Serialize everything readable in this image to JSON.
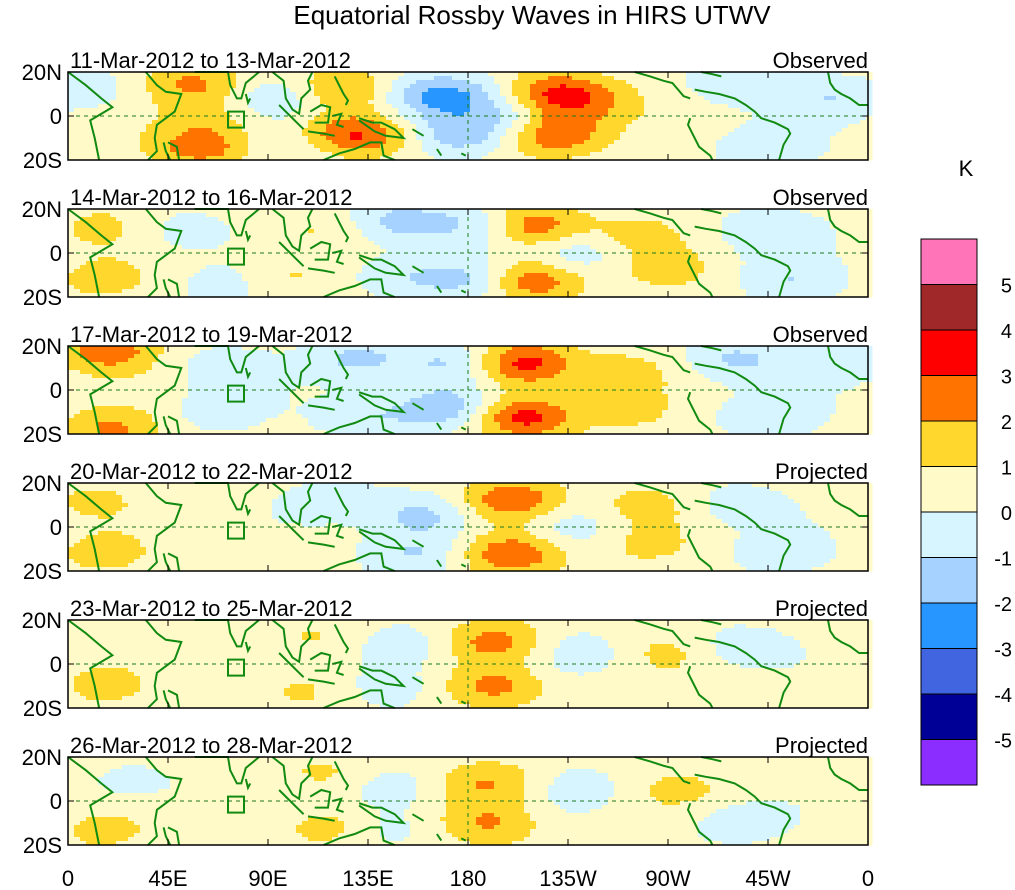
{
  "chart_data": {
    "type": "heatmap",
    "title": "Equatorial Rossby Waves in HIRS UTWV",
    "units": "K",
    "legend_position": "right",
    "x_ticks": [
      "0",
      "45E",
      "90E",
      "135E",
      "180",
      "135W",
      "90W",
      "45W",
      "0"
    ],
    "y_ticks": [
      "20N",
      "0",
      "20S"
    ],
    "lon_range": [
      0,
      360
    ],
    "lat_range": [
      -20,
      20
    ],
    "colorbar": {
      "levels": [
        "5",
        "4",
        "3",
        "2",
        "1",
        "0",
        "-1",
        "-2",
        "-3",
        "-4",
        "-5"
      ],
      "colors": [
        "#ff73b9",
        "#a02828",
        "#ff0000",
        "#ff7300",
        "#ffd72d",
        "#fffac8",
        "#d7f5ff",
        "#a5d2ff",
        "#2896ff",
        "#4164e1",
        "#000096",
        "#8c2dff"
      ]
    },
    "panels": [
      {
        "date_range": "11-Mar-2012 to 13-Mar-2012",
        "status": "Observed",
        "blobs": [
          [
            122,
            12,
            1.8
          ],
          [
            122,
            -10,
            2.0
          ],
          [
            60,
            -14,
            2.2
          ],
          [
            57,
            15,
            1.8
          ],
          [
            136,
            -8,
            1.3
          ],
          [
            218,
            10,
            2.8
          ],
          [
            218,
            -8,
            2.8
          ],
          [
            236,
            6,
            1.2
          ],
          [
            160,
            8,
            -1.6
          ],
          [
            175,
            -8,
            -2.0
          ],
          [
            175,
            10,
            -1.6
          ],
          [
            200,
            0,
            -1.2
          ],
          [
            95,
            8,
            -1.2
          ],
          [
            8,
            12,
            -1.0
          ],
          [
            300,
            15,
            -1.2
          ],
          [
            345,
            8,
            -1.2
          ],
          [
            315,
            -15,
            -1.2
          ],
          [
            108,
            -15,
            -1.0
          ],
          [
            65,
            0,
            0.8
          ]
        ]
      },
      {
        "date_range": "14-Mar-2012 to 16-Mar-2012",
        "status": "Observed",
        "blobs": [
          [
            208,
            12,
            2.8
          ],
          [
            208,
            -12,
            2.8
          ],
          [
            150,
            14,
            -1.8
          ],
          [
            150,
            -10,
            -1.2
          ],
          [
            182,
            -12,
            -1.8
          ],
          [
            186,
            12,
            -1.6
          ],
          [
            228,
            0,
            -1.2
          ],
          [
            255,
            8,
            1.0
          ],
          [
            270,
            -8,
            0.9
          ],
          [
            315,
            10,
            -1.2
          ],
          [
            325,
            -12,
            -1.2
          ],
          [
            15,
            -12,
            1.0
          ],
          [
            15,
            12,
            0.9
          ],
          [
            100,
            -10,
            0.9
          ],
          [
            110,
            10,
            0.8
          ],
          [
            70,
            -15,
            -0.8
          ],
          [
            50,
            10,
            -0.8
          ]
        ]
      },
      {
        "date_range": "17-Mar-2012 to 19-Mar-2012",
        "status": "Observed",
        "blobs": [
          [
            205,
            12,
            3.2
          ],
          [
            205,
            -12,
            3.2
          ],
          [
            170,
            -8,
            -2.2
          ],
          [
            172,
            12,
            -1.6
          ],
          [
            130,
            14,
            -1.6
          ],
          [
            135,
            -12,
            -1.2
          ],
          [
            18,
            18,
            2.3
          ],
          [
            20,
            -18,
            1.8
          ],
          [
            250,
            8,
            1.0
          ],
          [
            252,
            -10,
            0.8
          ],
          [
            300,
            14,
            -1.5
          ],
          [
            315,
            -12,
            -1.2
          ],
          [
            345,
            12,
            -1.0
          ],
          [
            70,
            10,
            -0.9
          ],
          [
            65,
            -10,
            -0.8
          ]
        ]
      },
      {
        "date_range": "20-Mar-2012 to 22-Mar-2012",
        "status": "Projected",
        "blobs": [
          [
            200,
            12,
            2.7
          ],
          [
            200,
            -12,
            2.7
          ],
          [
            160,
            5,
            -1.8
          ],
          [
            155,
            -12,
            -1.5
          ],
          [
            228,
            0,
            -0.9
          ],
          [
            260,
            10,
            1.0
          ],
          [
            260,
            -8,
            0.8
          ],
          [
            120,
            12,
            -0.9
          ],
          [
            300,
            10,
            -0.9
          ],
          [
            320,
            -12,
            -0.9
          ],
          [
            15,
            -12,
            1.0
          ],
          [
            10,
            12,
            0.8
          ]
        ]
      },
      {
        "date_range": "23-Mar-2012 to 25-Mar-2012",
        "status": "Projected",
        "blobs": [
          [
            192,
            10,
            2.2
          ],
          [
            192,
            -10,
            2.0
          ],
          [
            150,
            8,
            -1.2
          ],
          [
            145,
            -10,
            -1.0
          ],
          [
            232,
            5,
            -0.9
          ],
          [
            270,
            5,
            0.8
          ],
          [
            105,
            -12,
            0.9
          ],
          [
            110,
            12,
            0.8
          ],
          [
            300,
            8,
            -0.9
          ],
          [
            15,
            -10,
            0.9
          ]
        ]
      },
      {
        "date_range": "26-Mar-2012 to 28-Mar-2012",
        "status": "Projected",
        "blobs": [
          [
            190,
            8,
            1.8
          ],
          [
            190,
            -10,
            1.8
          ],
          [
            145,
            6,
            -1.1
          ],
          [
            142,
            -12,
            -0.9
          ],
          [
            230,
            5,
            -0.9
          ],
          [
            118,
            -12,
            1.2
          ],
          [
            115,
            12,
            0.9
          ],
          [
            275,
            5,
            0.8
          ],
          [
            300,
            -10,
            -0.9
          ],
          [
            30,
            8,
            -0.8
          ],
          [
            15,
            -14,
            0.9
          ]
        ]
      }
    ]
  }
}
